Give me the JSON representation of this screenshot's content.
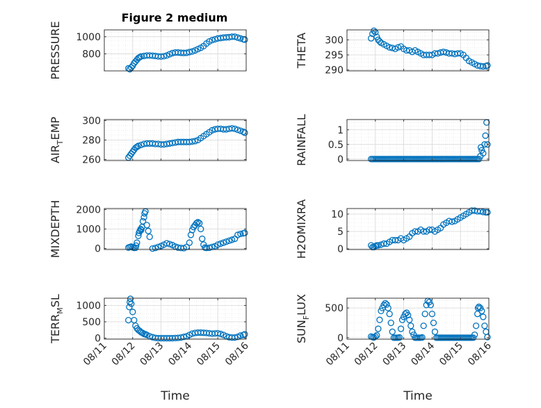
{
  "figure": {
    "title": "Figure 2 medium"
  },
  "colors": {
    "marker": "#0072BD",
    "axis": "#262626",
    "grid": "#d7d7d7",
    "background": "#ffffff"
  },
  "chart_data": [
    {
      "id": "pressure",
      "type": "scatter",
      "marker": "circle",
      "ylabel": "PRESSURE",
      "ylabel_main": "PRESSURE",
      "ylim": [
        600,
        1080
      ],
      "yticks": [
        800,
        1000
      ],
      "ytick_labels": [
        "800",
        "1000"
      ],
      "xlim": [
        0,
        5
      ],
      "xticks": [
        0,
        1,
        2,
        3,
        4,
        5
      ],
      "xtick_labels": [
        "08/11",
        "08/12",
        "08/13",
        "08/14",
        "08/15",
        "08/16"
      ],
      "show_xtick_labels": false,
      "grid": true,
      "x": [
        0.85,
        0.9,
        0.95,
        1.0,
        1.05,
        1.1,
        1.15,
        1.2,
        1.25,
        1.3,
        1.4,
        1.5,
        1.6,
        1.7,
        1.8,
        1.9,
        2.0,
        2.1,
        2.2,
        2.3,
        2.4,
        2.5,
        2.6,
        2.7,
        2.8,
        2.9,
        3.0,
        3.1,
        3.2,
        3.3,
        3.4,
        3.5,
        3.6,
        3.7,
        3.8,
        3.9,
        4.0,
        4.1,
        4.2,
        4.3,
        4.4,
        4.5,
        4.6,
        4.7,
        4.8,
        4.9,
        4.95
      ],
      "y": [
        630,
        620,
        640,
        660,
        690,
        710,
        730,
        750,
        760,
        770,
        775,
        780,
        780,
        778,
        775,
        770,
        768,
        772,
        780,
        795,
        808,
        815,
        815,
        812,
        810,
        812,
        820,
        828,
        840,
        855,
        870,
        890,
        920,
        945,
        960,
        970,
        980,
        985,
        990,
        993,
        995,
        1000,
        1000,
        990,
        980,
        970,
        965
      ]
    },
    {
      "id": "theta",
      "type": "scatter",
      "marker": "circle",
      "ylabel": "THETA",
      "ylabel_main": "THETA",
      "ylim": [
        289.7,
        303.3
      ],
      "yticks": [
        290,
        295,
        300
      ],
      "ytick_labels": [
        "290",
        "295",
        "300"
      ],
      "xlim": [
        0,
        5
      ],
      "xticks": [
        0,
        1,
        2,
        3,
        4,
        5
      ],
      "xtick_labels": [
        "08/11",
        "08/12",
        "08/13",
        "08/14",
        "08/15",
        "08/16"
      ],
      "show_xtick_labels": false,
      "grid": true,
      "x": [
        0.85,
        0.9,
        0.95,
        1.0,
        1.05,
        1.1,
        1.15,
        1.2,
        1.3,
        1.4,
        1.5,
        1.6,
        1.7,
        1.8,
        1.9,
        2.0,
        2.1,
        2.2,
        2.3,
        2.4,
        2.5,
        2.6,
        2.7,
        2.8,
        2.9,
        3.0,
        3.1,
        3.2,
        3.3,
        3.4,
        3.5,
        3.6,
        3.7,
        3.8,
        3.9,
        4.0,
        4.1,
        4.2,
        4.3,
        4.4,
        4.5,
        4.6,
        4.7,
        4.8,
        4.9,
        4.95
      ],
      "y": [
        300.5,
        302,
        303,
        302.5,
        301,
        300,
        299.5,
        299,
        298.5,
        298,
        297.5,
        297.3,
        297,
        297.5,
        297.8,
        297,
        296.5,
        296.5,
        296,
        296.5,
        296,
        295.5,
        295,
        295,
        295,
        295,
        295.5,
        295.5,
        295.8,
        296,
        295.8,
        295.5,
        295.5,
        295.3,
        295.5,
        295.5,
        295,
        294,
        293,
        292.5,
        292,
        291.5,
        291.3,
        291.2,
        291.3,
        291.5
      ]
    },
    {
      "id": "air_temp",
      "type": "scatter",
      "marker": "circle",
      "ylabel": "AIR_TEMP",
      "ylabel_main": "AIR",
      "ylabel_sub": "T",
      "ylabel_rest": "EMP",
      "ylim": [
        259,
        301
      ],
      "yticks": [
        260,
        280,
        300
      ],
      "ytick_labels": [
        "260",
        "280",
        "300"
      ],
      "xlim": [
        0,
        5
      ],
      "xticks": [
        0,
        1,
        2,
        3,
        4,
        5
      ],
      "xtick_labels": [
        "08/11",
        "08/12",
        "08/13",
        "08/14",
        "08/15",
        "08/16"
      ],
      "show_xtick_labels": false,
      "grid": true,
      "x": [
        0.85,
        0.9,
        0.95,
        1.0,
        1.05,
        1.1,
        1.15,
        1.2,
        1.3,
        1.4,
        1.5,
        1.6,
        1.7,
        1.8,
        1.9,
        2.0,
        2.1,
        2.2,
        2.3,
        2.4,
        2.5,
        2.6,
        2.7,
        2.8,
        2.9,
        3.0,
        3.1,
        3.2,
        3.3,
        3.4,
        3.5,
        3.6,
        3.7,
        3.8,
        3.9,
        4.0,
        4.1,
        4.2,
        4.3,
        4.4,
        4.5,
        4.6,
        4.7,
        4.8,
        4.9,
        4.95
      ],
      "y": [
        262,
        264,
        266,
        268,
        270,
        272,
        273,
        274,
        275,
        276,
        276.5,
        276.5,
        276.5,
        276,
        276,
        275.5,
        275.5,
        276,
        276.5,
        277,
        277.5,
        278,
        278,
        278,
        278,
        278,
        278.5,
        279,
        280,
        282,
        284,
        286,
        288,
        290,
        291,
        291.5,
        291.5,
        291,
        291,
        291.5,
        292,
        291.5,
        290.5,
        289.5,
        288.5,
        287.5
      ]
    },
    {
      "id": "rainfall",
      "type": "scatter",
      "marker": "circle",
      "ylabel": "RAINFALL",
      "ylabel_main": "RAINFALL",
      "ylim": [
        -0.05,
        1.35
      ],
      "yticks": [
        0,
        0.5,
        1
      ],
      "ytick_labels": [
        "0",
        "0.5",
        "1"
      ],
      "xlim": [
        0,
        5
      ],
      "xticks": [
        0,
        1,
        2,
        3,
        4,
        5
      ],
      "xtick_labels": [
        "08/11",
        "08/12",
        "08/13",
        "08/14",
        "08/15",
        "08/16"
      ],
      "show_xtick_labels": false,
      "grid": true,
      "x": [
        0.85,
        0.9,
        0.95,
        1.0,
        1.05,
        1.1,
        1.15,
        1.2,
        1.25,
        1.3,
        1.35,
        1.4,
        1.45,
        1.5,
        1.55,
        1.6,
        1.65,
        1.7,
        1.75,
        1.8,
        1.85,
        1.9,
        1.95,
        2.0,
        2.05,
        2.1,
        2.15,
        2.2,
        2.25,
        2.3,
        2.35,
        2.4,
        2.45,
        2.5,
        2.55,
        2.6,
        2.65,
        2.7,
        2.75,
        2.8,
        2.85,
        2.9,
        2.95,
        3.0,
        3.05,
        3.1,
        3.15,
        3.2,
        3.25,
        3.3,
        3.35,
        3.4,
        3.45,
        3.5,
        3.55,
        3.6,
        3.65,
        3.7,
        3.75,
        3.8,
        3.85,
        3.9,
        3.95,
        4.0,
        4.05,
        4.1,
        4.15,
        4.2,
        4.25,
        4.3,
        4.35,
        4.4,
        4.45,
        4.5,
        4.55,
        4.6,
        4.65,
        4.7,
        4.72,
        4.75,
        4.8,
        4.85,
        4.88,
        4.92,
        4.95
      ],
      "y": [
        0,
        0,
        0,
        0,
        0,
        0,
        0,
        0,
        0,
        0,
        0,
        0,
        0,
        0,
        0,
        0,
        0,
        0,
        0,
        0,
        0,
        0,
        0,
        0,
        0,
        0,
        0,
        0,
        0,
        0,
        0,
        0,
        0,
        0,
        0,
        0,
        0,
        0,
        0,
        0,
        0,
        0,
        0,
        0,
        0,
        0,
        0,
        0,
        0,
        0,
        0,
        0,
        0,
        0,
        0,
        0,
        0,
        0,
        0,
        0,
        0,
        0,
        0,
        0,
        0,
        0,
        0,
        0,
        0,
        0,
        0,
        0,
        0,
        0,
        0,
        0,
        0,
        0.1,
        0.4,
        0.3,
        0.2,
        0.5,
        0.8,
        1.25,
        0.5
      ]
    },
    {
      "id": "mixdepth",
      "type": "scatter",
      "marker": "circle",
      "ylabel": "MIXDEPTH",
      "ylabel_main": "MIXDEPTH",
      "ylim": [
        -50,
        2050
      ],
      "yticks": [
        0,
        1000,
        2000
      ],
      "ytick_labels": [
        "0",
        "1000",
        "2000"
      ],
      "xlim": [
        0,
        5
      ],
      "xticks": [
        0,
        1,
        2,
        3,
        4,
        5
      ],
      "xtick_labels": [
        "08/11",
        "08/12",
        "08/13",
        "08/14",
        "08/15",
        "08/16"
      ],
      "show_xtick_labels": false,
      "grid": true,
      "x": [
        0.85,
        0.9,
        0.95,
        1.0,
        1.05,
        1.1,
        1.12,
        1.15,
        1.2,
        1.22,
        1.25,
        1.28,
        1.3,
        1.33,
        1.36,
        1.4,
        1.42,
        1.45,
        1.5,
        1.55,
        1.6,
        1.7,
        1.8,
        1.9,
        2.0,
        2.1,
        2.2,
        2.3,
        2.4,
        2.5,
        2.6,
        2.7,
        2.8,
        2.9,
        3.0,
        3.05,
        3.1,
        3.15,
        3.2,
        3.25,
        3.3,
        3.35,
        3.4,
        3.45,
        3.5,
        3.55,
        3.6,
        3.7,
        3.8,
        3.9,
        4.0,
        4.1,
        4.2,
        4.3,
        4.4,
        4.5,
        4.6,
        4.7,
        4.8,
        4.9,
        4.95
      ],
      "y": [
        50,
        80,
        100,
        60,
        30,
        40,
        150,
        300,
        650,
        800,
        900,
        1000,
        950,
        1100,
        1400,
        1600,
        1800,
        1900,
        1200,
        900,
        600,
        0,
        30,
        80,
        130,
        200,
        270,
        230,
        180,
        100,
        50,
        30,
        20,
        80,
        300,
        700,
        950,
        1100,
        1200,
        1300,
        1350,
        1300,
        1000,
        500,
        200,
        50,
        30,
        40,
        80,
        120,
        200,
        250,
        300,
        350,
        400,
        450,
        500,
        700,
        750,
        780,
        800
      ]
    },
    {
      "id": "h2omixra",
      "type": "scatter",
      "marker": "circle",
      "ylabel": "H2OMIXRA",
      "ylabel_main": "H2OMIXRA",
      "ylim": [
        -0.2,
        11.6
      ],
      "yticks": [
        0,
        5,
        10
      ],
      "ytick_labels": [
        "0",
        "5",
        "10"
      ],
      "xlim": [
        0,
        5
      ],
      "xticks": [
        0,
        1,
        2,
        3,
        4,
        5
      ],
      "xtick_labels": [
        "08/11",
        "08/12",
        "08/13",
        "08/14",
        "08/15",
        "08/16"
      ],
      "show_xtick_labels": false,
      "grid": true,
      "x": [
        0.85,
        0.9,
        0.95,
        1.0,
        1.05,
        1.1,
        1.2,
        1.3,
        1.4,
        1.5,
        1.6,
        1.7,
        1.8,
        1.9,
        2.0,
        2.1,
        2.2,
        2.3,
        2.4,
        2.5,
        2.6,
        2.7,
        2.8,
        2.9,
        3.0,
        3.1,
        3.2,
        3.3,
        3.4,
        3.5,
        3.6,
        3.7,
        3.8,
        3.9,
        4.0,
        4.1,
        4.2,
        4.3,
        4.4,
        4.5,
        4.6,
        4.7,
        4.8,
        4.9,
        4.95
      ],
      "y": [
        1,
        0.5,
        0.5,
        0.8,
        1,
        1,
        1.2,
        1.5,
        1.5,
        2,
        2.5,
        2.5,
        2.5,
        3,
        2.5,
        3,
        3.5,
        4.5,
        5,
        5,
        5.5,
        5,
        5,
        5.5,
        5.5,
        5,
        5.5,
        6,
        7,
        7.5,
        8,
        7.8,
        8,
        8.5,
        9,
        9.5,
        10,
        10.5,
        11,
        11,
        10.8,
        10.8,
        10.6,
        10.5,
        10.5
      ]
    },
    {
      "id": "terr_msl",
      "type": "scatter",
      "marker": "circle",
      "ylabel": "TERR_MSL",
      "ylabel_main": "TERR",
      "ylabel_sub": "M",
      "ylabel_rest": "SL",
      "ylim": [
        -30,
        1220
      ],
      "yticks": [
        0,
        500,
        1000
      ],
      "ytick_labels": [
        "0",
        "500",
        "1000"
      ],
      "xlim": [
        0,
        5
      ],
      "xticks": [
        0,
        1,
        2,
        3,
        4,
        5
      ],
      "xtick_labels": [
        "08/11",
        "08/12",
        "08/13",
        "08/14",
        "08/15",
        "08/16"
      ],
      "show_xtick_labels": true,
      "grid": true,
      "xlabel": "Time",
      "x": [
        0.85,
        0.88,
        0.9,
        0.92,
        0.95,
        1.0,
        1.05,
        1.1,
        1.15,
        1.2,
        1.25,
        1.3,
        1.35,
        1.4,
        1.45,
        1.5,
        1.6,
        1.7,
        1.8,
        1.9,
        2.0,
        2.1,
        2.2,
        2.3,
        2.4,
        2.5,
        2.6,
        2.7,
        2.8,
        2.9,
        3.0,
        3.1,
        3.2,
        3.3,
        3.4,
        3.5,
        3.6,
        3.7,
        3.8,
        3.9,
        4.0,
        4.1,
        4.2,
        4.3,
        4.4,
        4.5,
        4.6,
        4.7,
        4.8,
        4.9,
        4.95
      ],
      "y": [
        550,
        950,
        1100,
        1200,
        1050,
        800,
        550,
        380,
        300,
        250,
        220,
        180,
        160,
        130,
        120,
        100,
        60,
        30,
        10,
        0,
        0,
        0,
        0,
        0,
        0,
        5,
        10,
        20,
        40,
        60,
        100,
        140,
        160,
        170,
        170,
        165,
        160,
        150,
        140,
        145,
        150,
        130,
        100,
        60,
        30,
        20,
        20,
        40,
        80,
        100,
        120
      ]
    },
    {
      "id": "sun_flux",
      "type": "scatter",
      "marker": "circle",
      "ylabel": "SUN_FLUX",
      "ylabel_main": "SUN",
      "ylabel_sub": "F",
      "ylabel_rest": "LUX",
      "ylim": [
        -25,
        665
      ],
      "yticks": [
        0,
        500
      ],
      "ytick_labels": [
        "0",
        "500"
      ],
      "xlim": [
        0,
        5
      ],
      "xticks": [
        0,
        1,
        2,
        3,
        4,
        5
      ],
      "xtick_labels": [
        "08/11",
        "08/12",
        "08/13",
        "08/14",
        "08/15",
        "08/16"
      ],
      "show_xtick_labels": true,
      "grid": true,
      "xlabel": "Time",
      "x": [
        0.85,
        0.9,
        0.95,
        1.0,
        1.05,
        1.1,
        1.15,
        1.2,
        1.25,
        1.3,
        1.35,
        1.4,
        1.45,
        1.5,
        1.55,
        1.6,
        1.65,
        1.7,
        1.75,
        1.8,
        1.85,
        1.9,
        1.95,
        2.0,
        2.05,
        2.1,
        2.15,
        2.2,
        2.25,
        2.3,
        2.35,
        2.4,
        2.45,
        2.5,
        2.55,
        2.6,
        2.65,
        2.7,
        2.75,
        2.8,
        2.85,
        2.9,
        2.95,
        3.0,
        3.05,
        3.1,
        3.15,
        3.2,
        3.25,
        3.3,
        3.35,
        3.4,
        3.45,
        3.5,
        3.55,
        3.6,
        3.65,
        3.7,
        3.75,
        3.8,
        3.85,
        3.9,
        3.95,
        4.0,
        4.05,
        4.1,
        4.15,
        4.2,
        4.25,
        4.3,
        4.35,
        4.4,
        4.45,
        4.5,
        4.55,
        4.6,
        4.62,
        4.65,
        4.7,
        4.75,
        4.8,
        4.85,
        4.9,
        4.95
      ],
      "y": [
        20,
        10,
        5,
        20,
        40,
        150,
        300,
        450,
        500,
        550,
        580,
        560,
        500,
        400,
        250,
        100,
        0,
        0,
        0,
        0,
        5,
        150,
        300,
        350,
        400,
        420,
        380,
        300,
        200,
        100,
        50,
        0,
        0,
        0,
        0,
        0,
        5,
        200,
        400,
        550,
        620,
        600,
        550,
        400,
        250,
        100,
        0,
        0,
        0,
        0,
        0,
        0,
        0,
        0,
        0,
        0,
        0,
        0,
        0,
        0,
        0,
        0,
        0,
        0,
        0,
        0,
        0,
        0,
        0,
        0,
        0,
        0,
        0,
        50,
        200,
        400,
        500,
        520,
        500,
        450,
        350,
        200,
        100,
        10
      ]
    }
  ]
}
